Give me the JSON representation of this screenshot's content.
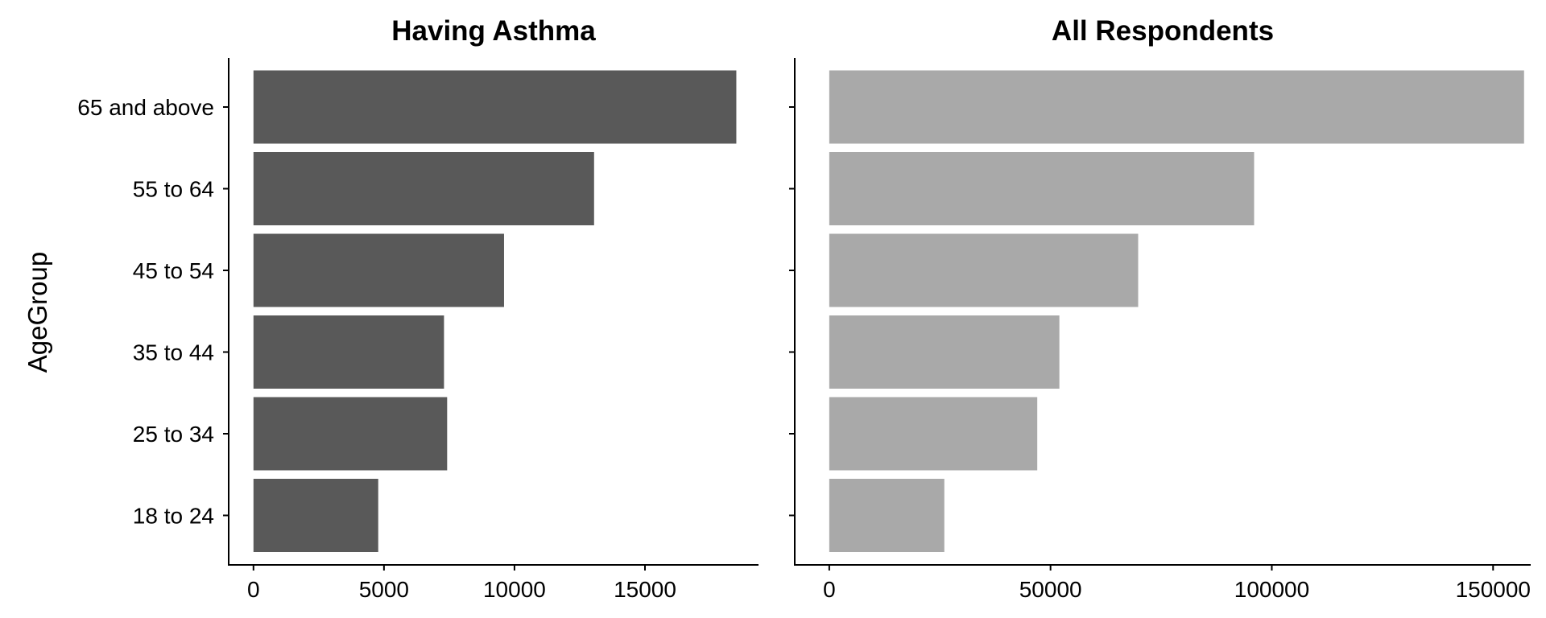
{
  "chart_data": {
    "type": "bar",
    "orientation": "horizontal",
    "ylabel": "AgeGroup",
    "categories": [
      "65 and above",
      "55 to 64",
      "45 to 54",
      "35 to 44",
      "25 to 34",
      "18 to 24"
    ],
    "grid": false,
    "legend": "none",
    "panels": [
      {
        "title": "Having Asthma",
        "values": [
          18500,
          13050,
          9600,
          7300,
          7420,
          4780
        ],
        "xlim": [
          -950,
          19350
        ],
        "xticks": [
          0,
          5000,
          10000,
          15000
        ],
        "color": "#595959"
      },
      {
        "title": "All Respondents",
        "values": [
          157000,
          96000,
          69800,
          52000,
          47000,
          26000
        ],
        "xlim": [
          -7800,
          158500
        ],
        "xticks": [
          0,
          50000,
          100000,
          150000
        ],
        "color": "#a9a9a9"
      }
    ]
  }
}
